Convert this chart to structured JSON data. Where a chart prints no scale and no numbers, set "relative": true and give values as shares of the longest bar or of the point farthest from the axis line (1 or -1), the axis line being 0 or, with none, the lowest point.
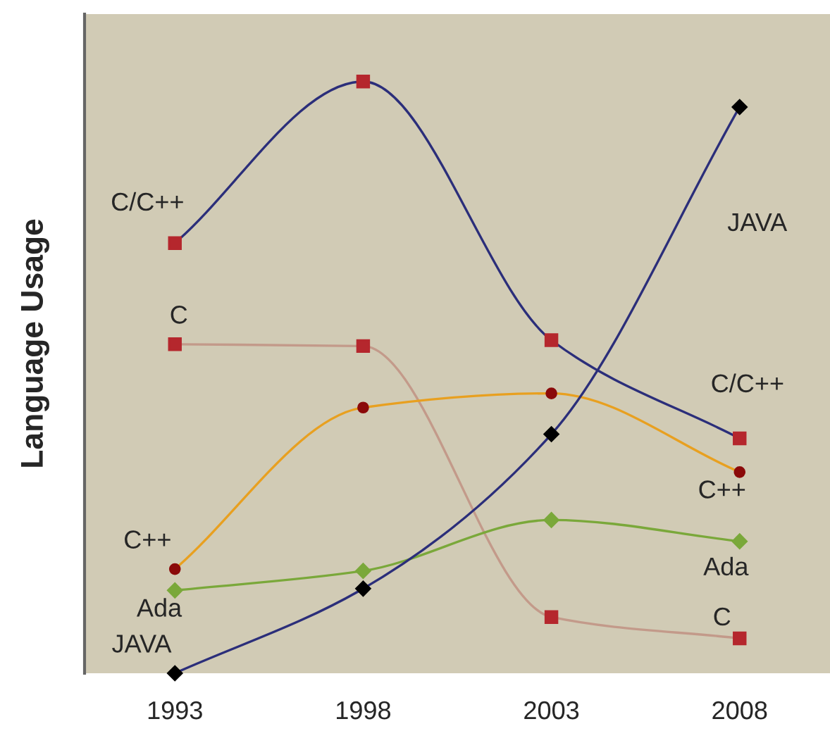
{
  "chart_data": {
    "type": "line",
    "relative": true,
    "ylabel": "Language Usage",
    "categories": [
      "1993",
      "1998",
      "2003",
      "2008"
    ],
    "tick_labels": "x",
    "grid": false,
    "legend": false,
    "series": [
      {
        "name": "C/C++",
        "color": "#2b2e7a",
        "colors": [
          "#b5272d",
          "#b5272d",
          "#b5272d",
          "#b5272d"
        ],
        "marker": "square",
        "values": [
          0.727,
          1.0,
          0.563,
          0.397
        ]
      },
      {
        "name": "C",
        "color": "#c39a8a",
        "colors": [
          "#b5272d",
          "#b5272d",
          "#b5272d",
          "#b5272d"
        ],
        "marker": "square",
        "values": [
          0.556,
          0.553,
          0.095,
          0.059
        ]
      },
      {
        "name": "C++",
        "color": "#e8a020",
        "colors": [
          "#8b0a0a",
          "#8b0a0a",
          "#8b0a0a",
          "#8b0a0a"
        ],
        "marker": "circle",
        "values": [
          0.176,
          0.449,
          0.473,
          0.34
        ]
      },
      {
        "name": "Ada",
        "color": "#7aa83a",
        "colors": [
          "#7aa83a",
          "#7aa83a",
          "#7aa83a",
          "#7aa83a"
        ],
        "marker": "diamond",
        "values": [
          0.14,
          0.173,
          0.259,
          0.223
        ]
      },
      {
        "name": "JAVA",
        "color": "#2b2e7a",
        "colors": [
          "#000000",
          "#000000",
          "#000000",
          "#000000"
        ],
        "marker": "diamond",
        "values": [
          0.0,
          0.143,
          0.404,
          0.957
        ]
      }
    ]
  }
}
